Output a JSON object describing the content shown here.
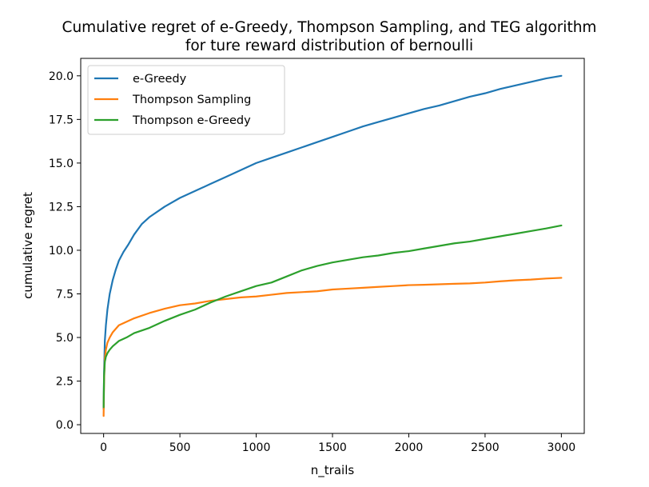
{
  "chart_data": {
    "type": "line",
    "title_line1": "Cumulative regret of e-Greedy, Thompson Sampling, and TEG algorithm",
    "title_line2": "for ture reward distribution of bernoulli",
    "xlabel": "n_trails",
    "ylabel": "cumulative regret",
    "xlim": [
      -150,
      3150
    ],
    "ylim": [
      -0.5,
      21.0
    ],
    "xticks": [
      0,
      500,
      1000,
      1500,
      2000,
      2500,
      3000
    ],
    "xtick_labels": [
      "0",
      "500",
      "1000",
      "1500",
      "2000",
      "2500",
      "3000"
    ],
    "yticks": [
      0.0,
      2.5,
      5.0,
      7.5,
      10.0,
      12.5,
      15.0,
      17.5,
      20.0
    ],
    "ytick_labels": [
      "0.0",
      "2.5",
      "5.0",
      "7.5",
      "10.0",
      "12.5",
      "15.0",
      "17.5",
      "20.0"
    ],
    "grid": false,
    "legend_position": "top-left",
    "series": [
      {
        "name": "e-Greedy",
        "color": "#1f77b4",
        "x": [
          0,
          3,
          8,
          15,
          25,
          40,
          60,
          80,
          100,
          130,
          160,
          200,
          250,
          300,
          400,
          500,
          600,
          700,
          800,
          900,
          1000,
          1100,
          1200,
          1300,
          1400,
          1500,
          1600,
          1700,
          1800,
          1900,
          2000,
          2100,
          2200,
          2300,
          2400,
          2500,
          2600,
          2700,
          2800,
          2900,
          3000
        ],
        "y": [
          0.9,
          3.0,
          4.8,
          5.7,
          6.6,
          7.5,
          8.3,
          8.9,
          9.4,
          9.9,
          10.3,
          10.9,
          11.5,
          11.9,
          12.5,
          13.0,
          13.4,
          13.8,
          14.2,
          14.6,
          15.0,
          15.3,
          15.6,
          15.9,
          16.2,
          16.5,
          16.8,
          17.1,
          17.35,
          17.6,
          17.85,
          18.1,
          18.3,
          18.55,
          18.8,
          19.0,
          19.25,
          19.45,
          19.65,
          19.85,
          20.0
        ]
      },
      {
        "name": "Thompson Sampling",
        "color": "#ff7f0e",
        "x": [
          0,
          3,
          8,
          15,
          25,
          40,
          60,
          80,
          100,
          150,
          200,
          300,
          400,
          500,
          600,
          700,
          800,
          900,
          1000,
          1100,
          1200,
          1300,
          1400,
          1500,
          1600,
          1700,
          1800,
          1900,
          2000,
          2100,
          2200,
          2300,
          2400,
          2500,
          2600,
          2700,
          2800,
          2900,
          3000
        ],
        "y": [
          0.5,
          2.5,
          3.8,
          4.3,
          4.7,
          5.0,
          5.3,
          5.5,
          5.7,
          5.9,
          6.1,
          6.4,
          6.65,
          6.85,
          6.95,
          7.1,
          7.2,
          7.3,
          7.35,
          7.45,
          7.55,
          7.6,
          7.65,
          7.75,
          7.8,
          7.85,
          7.9,
          7.95,
          8.0,
          8.02,
          8.05,
          8.08,
          8.1,
          8.15,
          8.22,
          8.28,
          8.32,
          8.38,
          8.42
        ]
      },
      {
        "name": "Thompson e-Greedy",
        "color": "#2ca02c",
        "x": [
          0,
          3,
          8,
          15,
          25,
          40,
          60,
          80,
          100,
          150,
          200,
          300,
          400,
          500,
          600,
          700,
          800,
          900,
          1000,
          1100,
          1200,
          1300,
          1400,
          1500,
          1600,
          1700,
          1800,
          1900,
          2000,
          2100,
          2200,
          2300,
          2400,
          2500,
          2600,
          2700,
          2800,
          2900,
          3000
        ],
        "y": [
          1.0,
          2.8,
          3.6,
          3.9,
          4.1,
          4.3,
          4.5,
          4.65,
          4.8,
          5.0,
          5.25,
          5.55,
          5.95,
          6.3,
          6.6,
          7.0,
          7.35,
          7.65,
          7.95,
          8.15,
          8.5,
          8.85,
          9.1,
          9.3,
          9.45,
          9.6,
          9.7,
          9.85,
          9.95,
          10.1,
          10.25,
          10.4,
          10.5,
          10.65,
          10.8,
          10.95,
          11.1,
          11.25,
          11.42
        ]
      }
    ]
  }
}
